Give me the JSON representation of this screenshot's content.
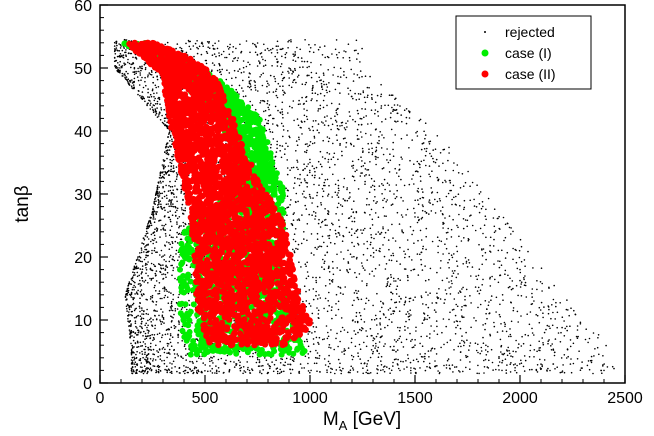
{
  "chart_data": {
    "type": "scatter",
    "title": "",
    "xlabel_main": "M",
    "xlabel_sub": "A",
    "xlabel_unit": " [GeV]",
    "ylabel": "tanβ",
    "xlim": [
      0,
      2500
    ],
    "ylim": [
      0,
      60
    ],
    "x_ticks": [
      0,
      500,
      1000,
      1500,
      2000,
      2500
    ],
    "y_ticks": [
      0,
      10,
      20,
      30,
      40,
      50,
      60
    ],
    "x_tick_labels": [
      "0",
      "500",
      "1000",
      "1500",
      "2000",
      "2500"
    ],
    "y_tick_labels": [
      "0",
      "10",
      "20",
      "30",
      "40",
      "50",
      "60"
    ],
    "grid": false,
    "legend_position": "top-right",
    "series": [
      {
        "name": "rejected",
        "color": "#000000",
        "marker": "dot",
        "region_envelope": {
          "y_ranges": [
            [
              2,
              8
            ],
            [
              8,
              20
            ],
            [
              20,
              35
            ],
            [
              35,
              45
            ],
            [
              45,
              55
            ]
          ],
          "x_min_at": [
            150,
            120,
            250,
            330,
            70
          ],
          "x_max_at": [
            2450,
            2200,
            1900,
            1600,
            1250
          ]
        },
        "sample_points": [
          [
            200,
            5
          ],
          [
            800,
            3
          ],
          [
            1500,
            6
          ],
          [
            2100,
            3
          ],
          [
            2400,
            2
          ],
          [
            300,
            15
          ],
          [
            1200,
            20
          ],
          [
            1800,
            12
          ],
          [
            400,
            30
          ],
          [
            1000,
            35
          ],
          [
            1400,
            30
          ],
          [
            600,
            45
          ],
          [
            900,
            50
          ],
          [
            150,
            54
          ],
          [
            1100,
            42
          ],
          [
            2000,
            18
          ],
          [
            1700,
            25
          ]
        ]
      },
      {
        "name": "case (I)",
        "color": "#00ee00",
        "marker": "circle",
        "band_description": "green edge band along border of red region",
        "band": [
          {
            "y": 5,
            "x_from": 420,
            "x_to": 980
          },
          {
            "y": 8,
            "x_from": 390,
            "x_to": 960
          },
          {
            "y": 12,
            "x_from": 380,
            "x_to": 900
          },
          {
            "y": 18,
            "x_from": 380,
            "x_to": 860
          },
          {
            "y": 24,
            "x_from": 390,
            "x_to": 880
          },
          {
            "y": 30,
            "x_from": 620,
            "x_to": 880
          },
          {
            "y": 36,
            "x_from": 650,
            "x_to": 820
          },
          {
            "y": 42,
            "x_from": 560,
            "x_to": 760
          },
          {
            "y": 48,
            "x_from": 380,
            "x_to": 580
          },
          {
            "y": 52,
            "x_from": 220,
            "x_to": 360
          },
          {
            "y": 54,
            "x_from": 100,
            "x_to": 220
          }
        ]
      },
      {
        "name": "case (II)",
        "color": "#ff0000",
        "marker": "circle",
        "band_description": "dense red band, x centre shifts with tanβ",
        "band": [
          {
            "y": 6,
            "x_from": 500,
            "x_to": 900
          },
          {
            "y": 9,
            "x_from": 440,
            "x_to": 1060
          },
          {
            "y": 14,
            "x_from": 420,
            "x_to": 980
          },
          {
            "y": 20,
            "x_from": 420,
            "x_to": 940
          },
          {
            "y": 26,
            "x_from": 400,
            "x_to": 900
          },
          {
            "y": 32,
            "x_from": 370,
            "x_to": 780
          },
          {
            "y": 38,
            "x_from": 330,
            "x_to": 700
          },
          {
            "y": 44,
            "x_from": 300,
            "x_to": 630
          },
          {
            "y": 49,
            "x_from": 280,
            "x_to": 560
          },
          {
            "y": 52,
            "x_from": 180,
            "x_to": 420
          },
          {
            "y": 54,
            "x_from": 110,
            "x_to": 260
          }
        ]
      }
    ],
    "legend": {
      "entries": [
        "rejected",
        "case (I)",
        "case (II)"
      ]
    }
  }
}
